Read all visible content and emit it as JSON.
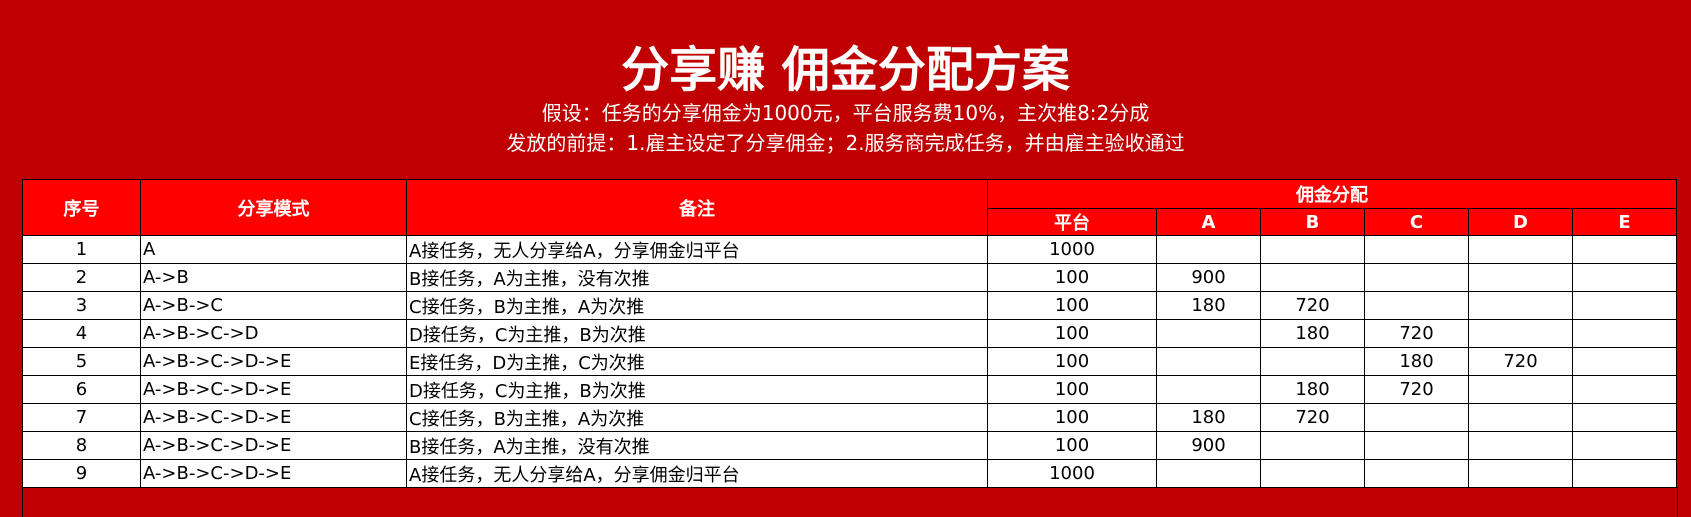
{
  "title": "分享赚 佣金分配方案",
  "subtitle1": "假设：任务的分享佣金为1000元，平台服务费10%，主次推8:2分成",
  "subtitle2": "发放的前提：1.雇主设定了分享佣金；2.服务商完成任务，并由雇主验收通过",
  "colors": {
    "background": "#C00000",
    "header": "#FF0000"
  },
  "headers": {
    "index": "序号",
    "mode": "分享模式",
    "note": "备注",
    "group": "佣金分配",
    "platform": "平台",
    "a": "A",
    "b": "B",
    "c": "C",
    "d": "D",
    "e": "E"
  },
  "rows": [
    {
      "index": "1",
      "mode": "A",
      "note": "A接任务，无人分享给A，分享佣金归平台",
      "platform": "1000",
      "a": "",
      "b": "",
      "c": "",
      "d": "",
      "e": ""
    },
    {
      "index": "2",
      "mode": "A->B",
      "note": "B接任务，A为主推，没有次推",
      "platform": "100",
      "a": "900",
      "b": "",
      "c": "",
      "d": "",
      "e": ""
    },
    {
      "index": "3",
      "mode": "A->B->C",
      "note": "C接任务，B为主推，A为次推",
      "platform": "100",
      "a": "180",
      "b": "720",
      "c": "",
      "d": "",
      "e": ""
    },
    {
      "index": "4",
      "mode": "A->B->C->D",
      "note": "D接任务，C为主推，B为次推",
      "platform": "100",
      "a": "",
      "b": "180",
      "c": "720",
      "d": "",
      "e": ""
    },
    {
      "index": "5",
      "mode": "A->B->C->D->E",
      "note": "E接任务，D为主推，C为次推",
      "platform": "100",
      "a": "",
      "b": "",
      "c": "180",
      "d": "720",
      "e": ""
    },
    {
      "index": "6",
      "mode": "A->B->C->D->E",
      "note": "D接任务，C为主推，B为次推",
      "platform": "100",
      "a": "",
      "b": "180",
      "c": "720",
      "d": "",
      "e": ""
    },
    {
      "index": "7",
      "mode": "A->B->C->D->E",
      "note": "C接任务，B为主推，A为次推",
      "platform": "100",
      "a": "180",
      "b": "720",
      "c": "",
      "d": "",
      "e": ""
    },
    {
      "index": "8",
      "mode": "A->B->C->D->E",
      "note": "B接任务，A为主推，没有次推",
      "platform": "100",
      "a": "900",
      "b": "",
      "c": "",
      "d": "",
      "e": ""
    },
    {
      "index": "9",
      "mode": "A->B->C->D->E",
      "note": "A接任务，无人分享给A，分享佣金归平台",
      "platform": "1000",
      "a": "",
      "b": "",
      "c": "",
      "d": "",
      "e": ""
    }
  ]
}
